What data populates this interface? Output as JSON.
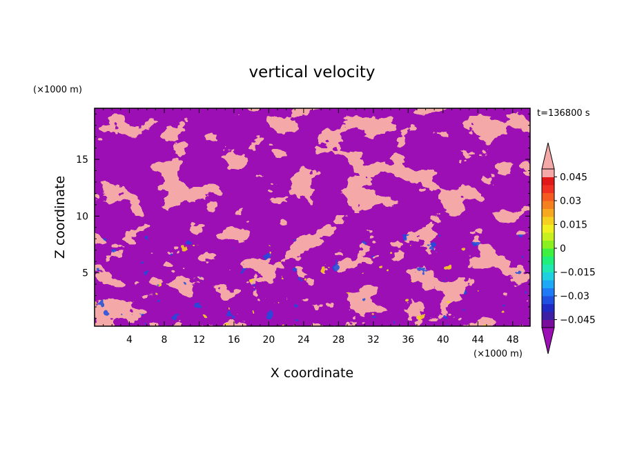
{
  "chart_data": {
    "type": "heatmap",
    "title": "vertical velocity",
    "xlabel": "X coordinate",
    "ylabel": "Z coordinate",
    "x_unit": "(×1000 m)",
    "y_unit": "(×1000 m)",
    "time_label": "t=136800 s",
    "xlim": [
      0,
      50
    ],
    "ylim": [
      0.3,
      19.5
    ],
    "x_ticks": [
      4,
      8,
      12,
      16,
      20,
      24,
      28,
      32,
      36,
      40,
      44,
      48
    ],
    "y_ticks": [
      5,
      10,
      15
    ],
    "colorbar": {
      "levels": [
        -0.05,
        -0.045,
        -0.04,
        -0.035,
        -0.03,
        -0.025,
        -0.02,
        -0.015,
        -0.01,
        -0.005,
        0,
        0.005,
        0.01,
        0.015,
        0.02,
        0.025,
        0.03,
        0.035,
        0.04,
        0.045,
        0.05
      ],
      "colors": [
        "#7a0c9c",
        "#3d1fa3",
        "#1f2bc2",
        "#1f50e0",
        "#1f7af5",
        "#1fa8f5",
        "#1fd0e0",
        "#1fe8b0",
        "#1ff07a",
        "#40f040",
        "#8af020",
        "#c8f020",
        "#f0f020",
        "#f5d020",
        "#f5a820",
        "#f58020",
        "#f55a20",
        "#f03020",
        "#e01818",
        "#f5a8a8"
      ],
      "under_color": "#9b0fb5",
      "over_color": "#f5a8a8",
      "tick_labels": [
        "0.045",
        "0.03",
        "0.015",
        "0",
        "−0.015",
        "−0.03",
        "−0.045"
      ],
      "tick_values": [
        0.045,
        0.03,
        0.015,
        0,
        -0.015,
        -0.03,
        -0.045
      ]
    }
  }
}
